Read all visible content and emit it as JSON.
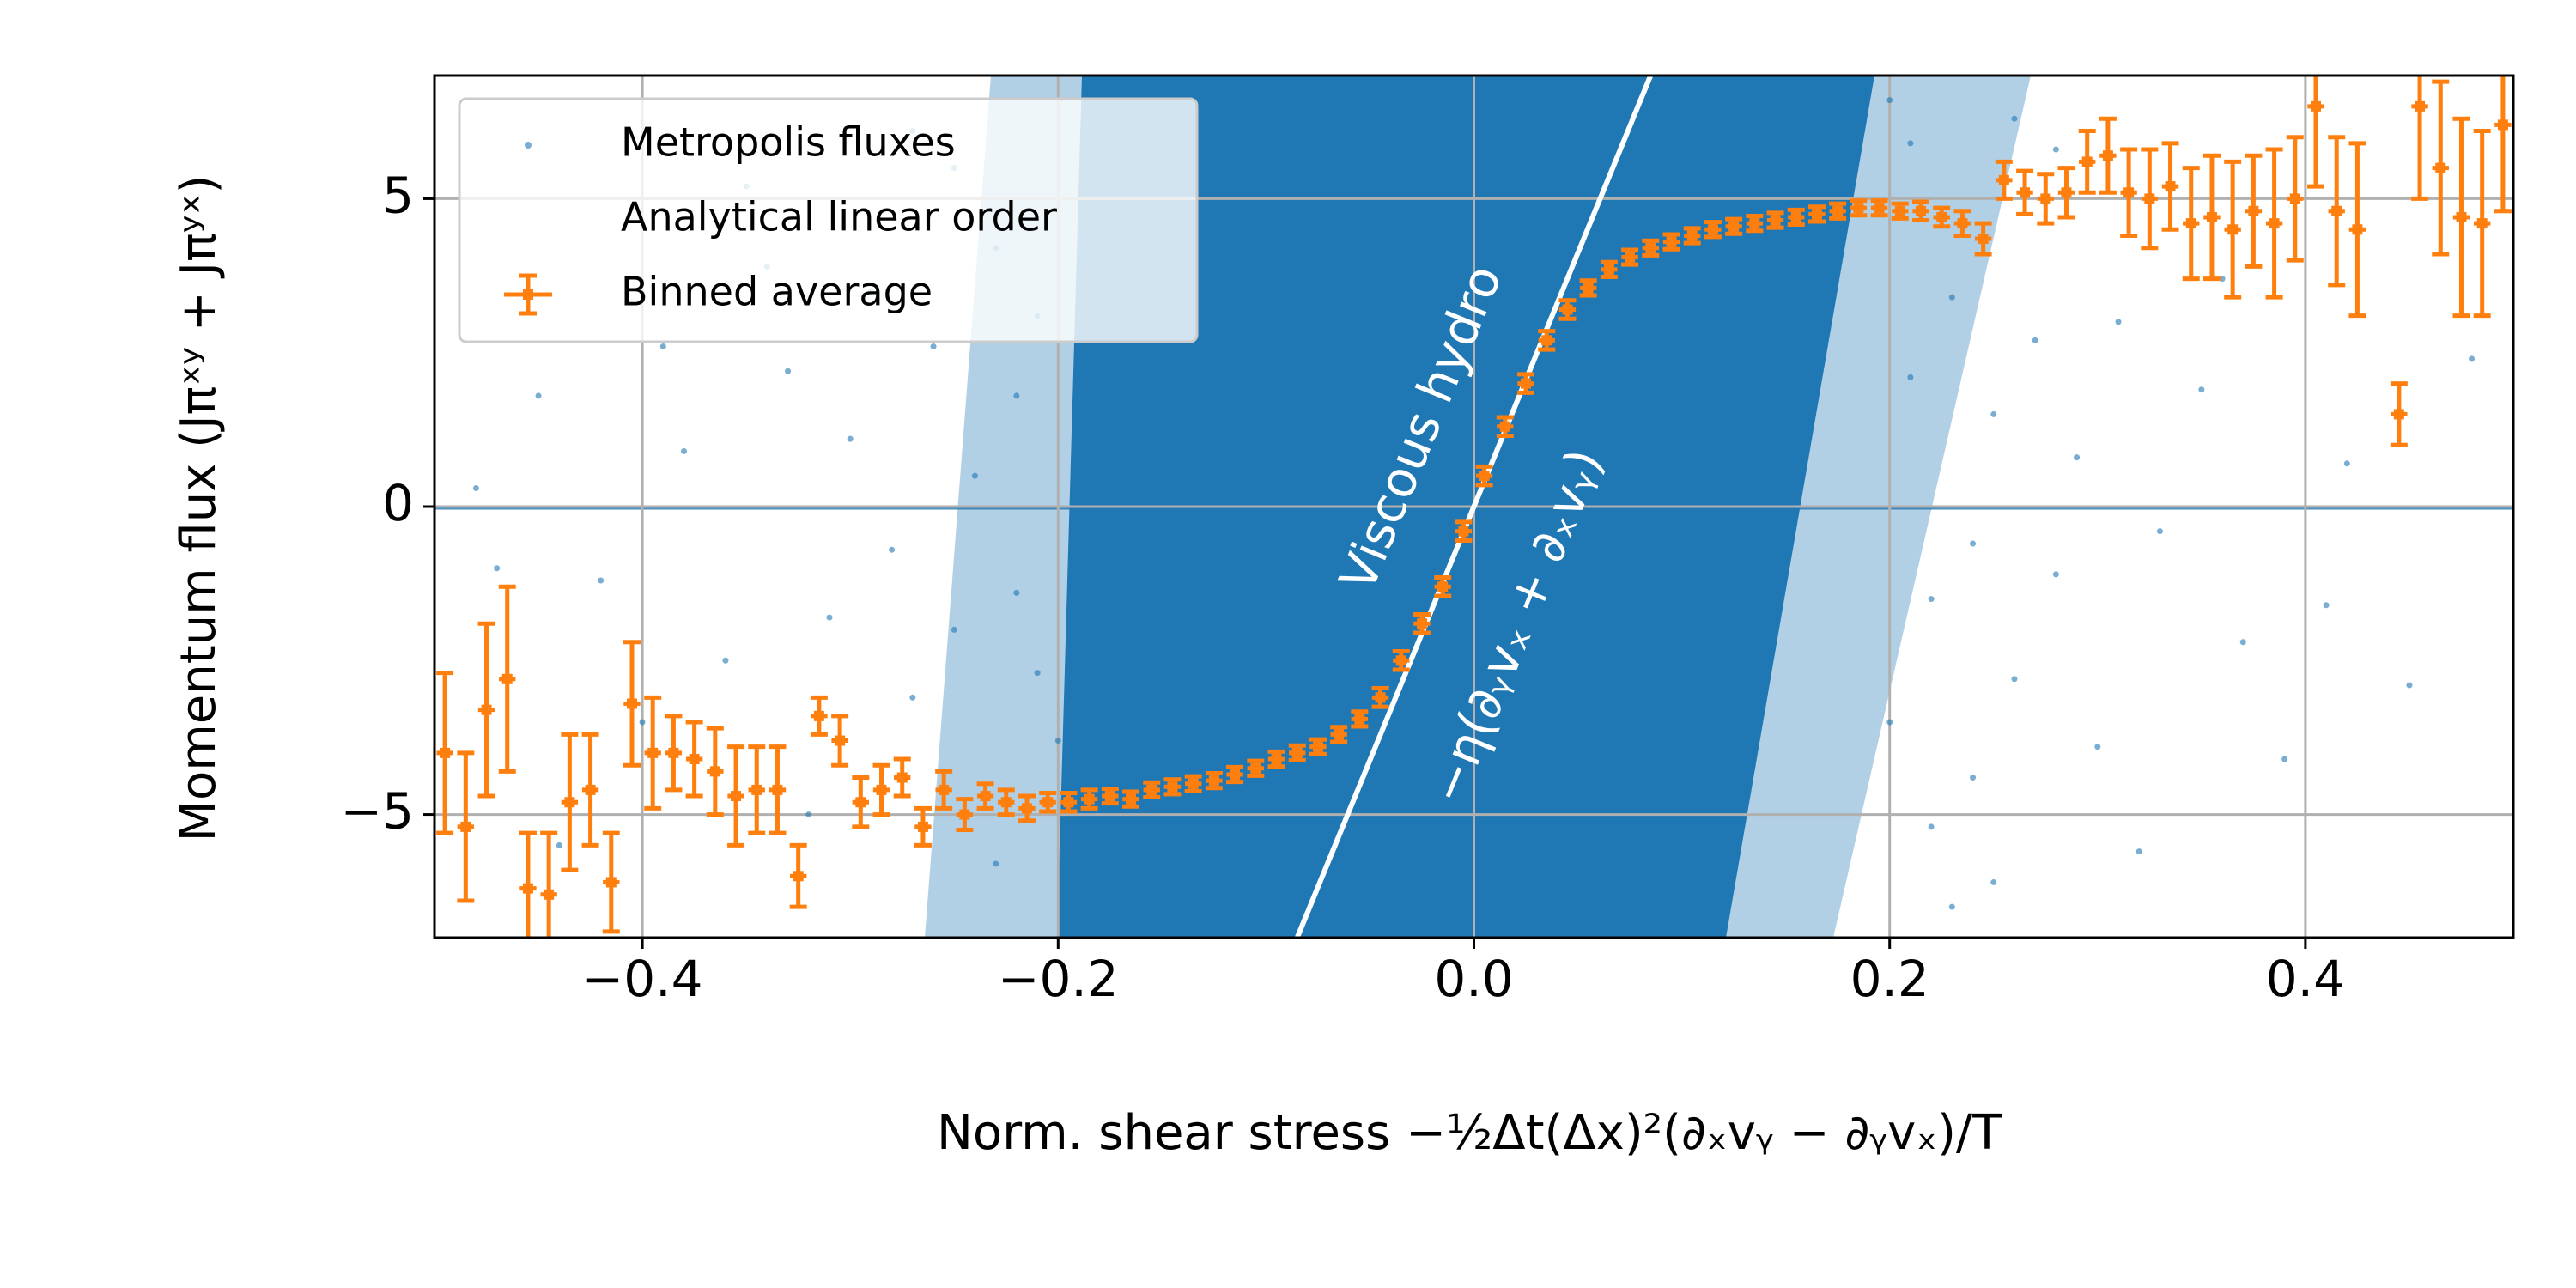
{
  "chart_data": {
    "type": "scatter",
    "xlabel": "Norm. shear stress −½Δt(Δx)²(∂ₓvᵧ − ∂ᵧvₓ)/T",
    "ylabel": "Momentum flux (Jπˣʸ + Jπʸˣ)",
    "xlim": [
      -0.5,
      0.5
    ],
    "ylim": [
      -7,
      7
    ],
    "xticks": [
      {
        "value": -0.4,
        "label": "−0.4"
      },
      {
        "value": -0.2,
        "label": "−0.2"
      },
      {
        "value": 0,
        "label": "0.0"
      },
      0.2,
      0.4
    ],
    "yticks": [
      {
        "value": -5,
        "label": "−5"
      },
      0,
      5
    ],
    "grid": true,
    "legend": "upper left",
    "annotations": [
      {
        "text": "Viscous hydro"
      },
      {
        "text": "−η(∂ᵧvₓ + ∂ₓvᵧ)"
      }
    ],
    "series": [
      {
        "name": "Metropolis fluxes",
        "type": "scatter",
        "color": "#1f77b4",
        "x": [
          -0.48,
          -0.45,
          -0.42,
          -0.38,
          -0.36,
          -0.33,
          -0.31,
          -0.3,
          -0.29,
          -0.28,
          -0.27,
          -0.26,
          -0.25,
          -0.24,
          -0.23,
          -0.22,
          -0.21,
          -0.2,
          -0.35,
          -0.4,
          -0.44,
          -0.47,
          -0.32,
          -0.27,
          -0.25,
          -0.23,
          -0.22,
          -0.21,
          -0.34,
          -0.39,
          0.2,
          0.21,
          0.22,
          0.23,
          0.24,
          0.25,
          0.26,
          0.27,
          0.28,
          0.29,
          0.3,
          0.31,
          0.33,
          0.35,
          0.37,
          0.39,
          0.42,
          0.45,
          0.48,
          0.22,
          0.24,
          0.26,
          0.28,
          0.32,
          0.21,
          0.23,
          0.36,
          0.41,
          0.25,
          0.2
        ],
        "y": [
          0.3,
          1.8,
          -1.2,
          0.9,
          -2.5,
          2.2,
          -1.8,
          1.1,
          3.5,
          -0.7,
          -3.1,
          2.6,
          -2.0,
          0.5,
          4.2,
          -1.4,
          3.1,
          -3.8,
          5.2,
          -3.5,
          -5.5,
          -1.0,
          -5.0,
          6.1,
          5.5,
          -5.8,
          1.8,
          -2.7,
          3.9,
          2.6,
          -3.5,
          2.1,
          -1.5,
          3.4,
          -0.6,
          1.5,
          -2.8,
          2.7,
          -1.1,
          0.8,
          -3.9,
          3.0,
          -0.4,
          1.9,
          -2.2,
          -4.1,
          0.7,
          -2.9,
          2.4,
          -5.2,
          -4.4,
          6.3,
          5.8,
          -5.6,
          5.9,
          -6.5,
          3.7,
          -1.6,
          -6.1,
          6.6
        ]
      },
      {
        "name": "Analytical linear order",
        "type": "line",
        "color": "#ffffff",
        "x": [
          -0.085,
          0.085
        ],
        "y": [
          -7,
          7
        ]
      },
      {
        "name": "Binned average",
        "type": "errorbar",
        "color": "#ff7f0e",
        "xerr": 0.004,
        "x": [
          -0.495,
          -0.485,
          -0.475,
          -0.465,
          -0.455,
          -0.445,
          -0.435,
          -0.425,
          -0.415,
          -0.405,
          -0.395,
          -0.385,
          -0.375,
          -0.365,
          -0.355,
          -0.345,
          -0.335,
          -0.325,
          -0.315,
          -0.305,
          -0.295,
          -0.285,
          -0.275,
          -0.265,
          -0.255,
          -0.245,
          -0.235,
          -0.225,
          -0.215,
          -0.205,
          -0.195,
          -0.185,
          -0.175,
          -0.165,
          -0.155,
          -0.145,
          -0.135,
          -0.125,
          -0.115,
          -0.105,
          -0.095,
          -0.085,
          -0.075,
          -0.065,
          -0.055,
          -0.045,
          -0.035,
          -0.025,
          -0.015,
          -0.005,
          0.005,
          0.015,
          0.025,
          0.035,
          0.045,
          0.055,
          0.065,
          0.075,
          0.085,
          0.095,
          0.105,
          0.115,
          0.125,
          0.135,
          0.145,
          0.155,
          0.165,
          0.175,
          0.185,
          0.195,
          0.205,
          0.215,
          0.225,
          0.235,
          0.245,
          0.255,
          0.265,
          0.275,
          0.285,
          0.295,
          0.305,
          0.315,
          0.325,
          0.335,
          0.345,
          0.355,
          0.365,
          0.375,
          0.385,
          0.395,
          0.405,
          0.415,
          0.425,
          0.445,
          0.455,
          0.465,
          0.475,
          0.485,
          0.495
        ],
        "y": [
          -4.0,
          -5.2,
          -3.3,
          -2.8,
          -6.2,
          -6.3,
          -4.8,
          -4.6,
          -6.1,
          -3.2,
          -4.0,
          -4.0,
          -4.1,
          -4.3,
          -4.7,
          -4.6,
          -4.6,
          -6.0,
          -3.4,
          -3.8,
          -4.8,
          -4.6,
          -4.4,
          -5.2,
          -4.6,
          -5.0,
          -4.7,
          -4.8,
          -4.9,
          -4.8,
          -4.8,
          -4.75,
          -4.7,
          -4.75,
          -4.6,
          -4.55,
          -4.5,
          -4.45,
          -4.35,
          -4.25,
          -4.1,
          -4.0,
          -3.9,
          -3.7,
          -3.45,
          -3.1,
          -2.5,
          -1.9,
          -1.3,
          -0.4,
          0.5,
          1.3,
          2.0,
          2.7,
          3.2,
          3.55,
          3.85,
          4.05,
          4.2,
          4.3,
          4.4,
          4.5,
          4.55,
          4.6,
          4.65,
          4.7,
          4.75,
          4.8,
          4.85,
          4.85,
          4.8,
          4.8,
          4.7,
          4.6,
          4.35,
          5.3,
          5.1,
          5.0,
          5.1,
          5.6,
          5.7,
          5.1,
          5.0,
          5.2,
          4.6,
          4.7,
          4.5,
          4.8,
          4.6,
          5.0,
          6.5,
          4.8,
          4.5,
          1.5,
          6.5,
          5.5,
          4.7,
          4.6,
          6.2
        ],
        "yerr": [
          1.3,
          1.2,
          1.4,
          1.5,
          0.9,
          1.0,
          1.1,
          0.9,
          0.8,
          1.0,
          0.9,
          0.6,
          0.6,
          0.7,
          0.8,
          0.7,
          0.7,
          0.5,
          0.3,
          0.4,
          0.4,
          0.4,
          0.3,
          0.3,
          0.3,
          0.25,
          0.2,
          0.2,
          0.2,
          0.15,
          0.15,
          0.15,
          0.12,
          0.12,
          0.12,
          0.12,
          0.12,
          0.12,
          0.12,
          0.12,
          0.12,
          0.12,
          0.12,
          0.12,
          0.12,
          0.15,
          0.15,
          0.15,
          0.15,
          0.15,
          0.15,
          0.15,
          0.15,
          0.15,
          0.15,
          0.12,
          0.12,
          0.12,
          0.12,
          0.12,
          0.12,
          0.12,
          0.12,
          0.12,
          0.12,
          0.12,
          0.12,
          0.12,
          0.12,
          0.12,
          0.12,
          0.15,
          0.15,
          0.2,
          0.25,
          0.3,
          0.35,
          0.4,
          0.4,
          0.5,
          0.6,
          0.7,
          0.8,
          0.7,
          0.9,
          1.0,
          1.1,
          0.9,
          1.2,
          1.0,
          1.3,
          1.2,
          1.4,
          0.5,
          1.5,
          1.4,
          1.6,
          1.5,
          1.4
        ]
      }
    ]
  }
}
